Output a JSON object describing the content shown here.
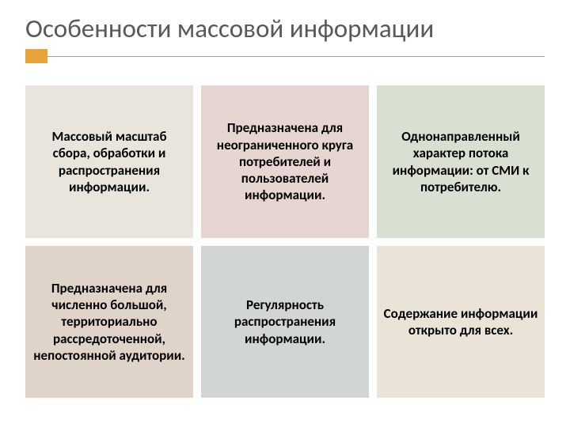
{
  "title": "Особенности массовой информации",
  "accent_color": "#e8a33d",
  "cells": [
    {
      "text": "Массовый масштаб сбора, обработки и распространения информации.",
      "bg": "#e9e4dc"
    },
    {
      "text": "Предназначена для неограниченного круга потребителей и пользователей информации.",
      "bg": "#e6d5d0"
    },
    {
      "text": "Однонаправленный характер потока информации: от СМИ к потребителю.",
      "bg": "#d9e0d1"
    },
    {
      "text": "Предназначена для численно большой, территориально рассредоточенной, непостоянной аудитории.",
      "bg": "#e0d4ca"
    },
    {
      "text": "Регулярность распространения информации.",
      "bg": "#d1d5d4"
    },
    {
      "text": "Содержание информации открыто для всех.",
      "bg": "#eae4d8"
    }
  ]
}
